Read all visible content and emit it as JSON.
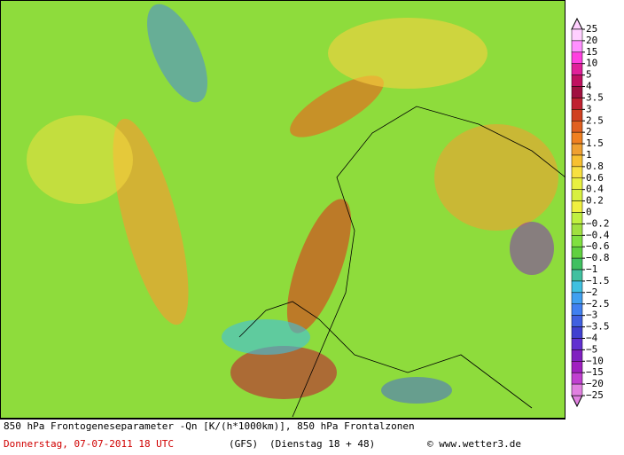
{
  "legend": {
    "labels": [
      "25",
      "20",
      "15",
      "10",
      "5",
      "4",
      "3.5",
      "3",
      "2.5",
      "2",
      "1.5",
      "1",
      "0.8",
      "0.6",
      "0.4",
      "0.2",
      "0",
      "−0.2",
      "−0.4",
      "−0.6",
      "−0.8",
      "−1",
      "−1.5",
      "−2",
      "−2.5",
      "−3",
      "−3.5",
      "−4",
      "−5",
      "−10",
      "−15",
      "−20",
      "−25"
    ],
    "colors": [
      "#ffd0ff",
      "#ff90ff",
      "#ff40e0",
      "#e0209a",
      "#c01060",
      "#a01040",
      "#c02030",
      "#d04020",
      "#e06020",
      "#f08020",
      "#f0a030",
      "#f8c030",
      "#f8e040",
      "#e8f040",
      "#d8f040",
      "#f0f040",
      "#c0f040",
      "#a0e040",
      "#80e040",
      "#60d040",
      "#40c060",
      "#40c0a0",
      "#40c0e0",
      "#40a0f0",
      "#4080f0",
      "#4060e0",
      "#4040d0",
      "#6030d0",
      "#8020c0",
      "#a020c0",
      "#c040d0",
      "#e080e0"
    ]
  },
  "footer": {
    "line1": "850 hPa Frontogeneseparameter -Qn [K/(h*1000km)],  850 hPa Frontalzonen",
    "date": "Donnerstag, 07-07-2011   18 UTC",
    "model": "(GFS)",
    "run": "(Dienstag 18 + 48)",
    "credit": "© www.wetter3.de"
  }
}
